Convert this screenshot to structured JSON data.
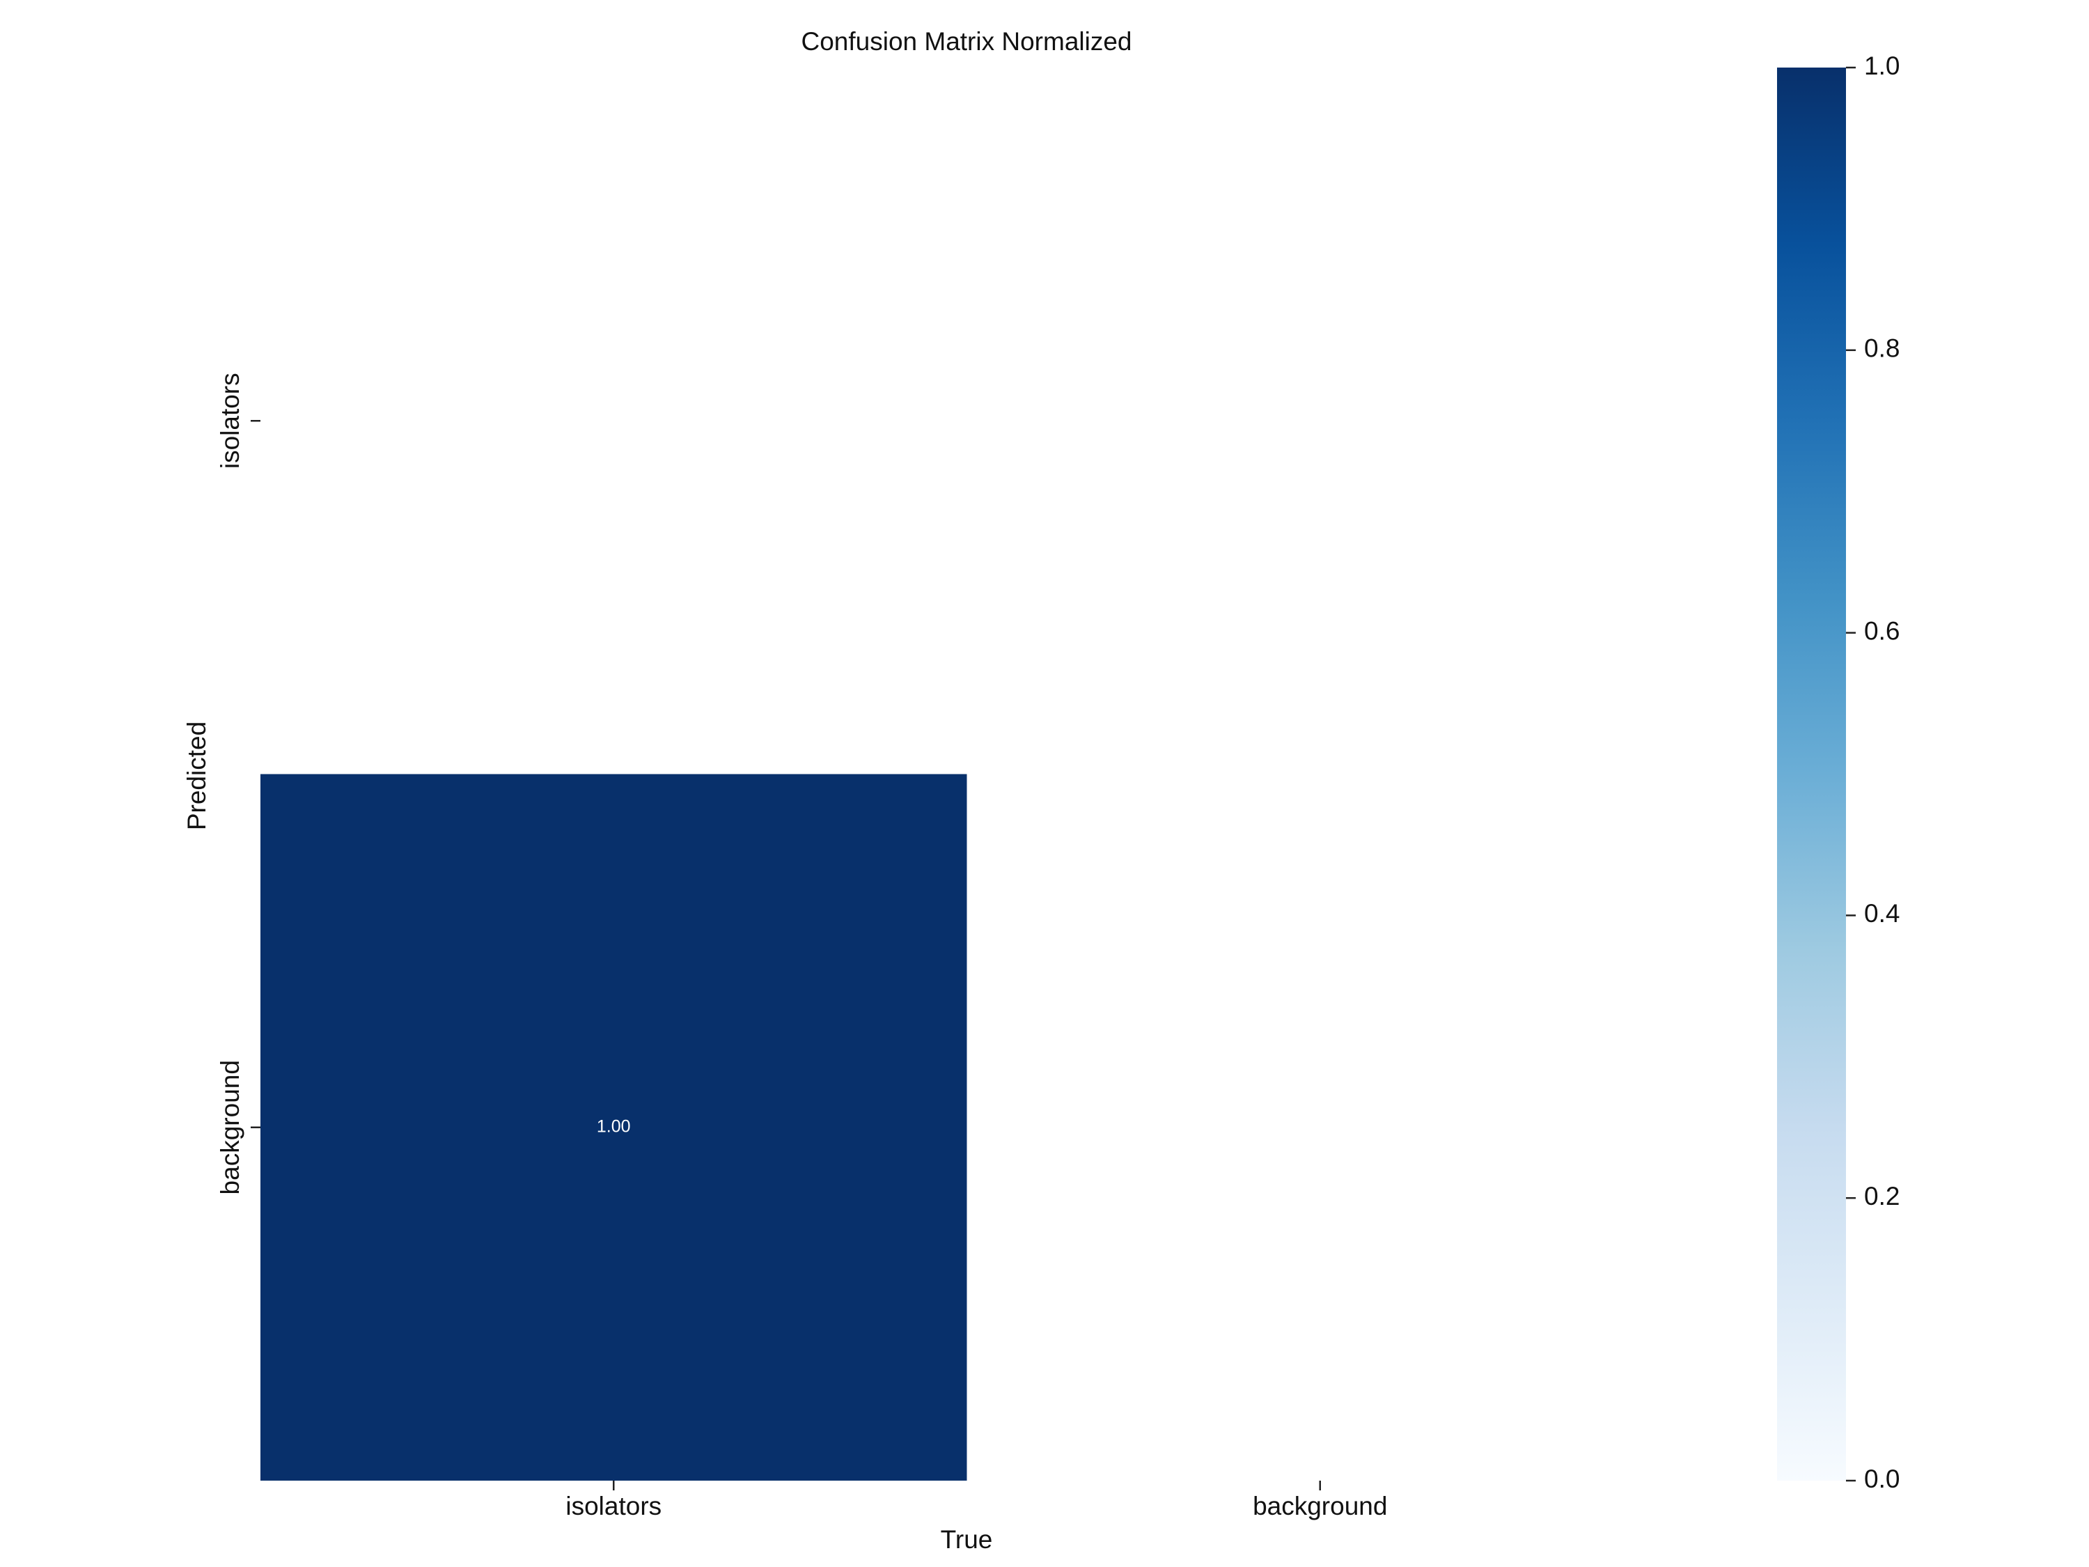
{
  "chart_data": {
    "type": "heatmap",
    "title": "Confusion Matrix Normalized",
    "x_label": "True",
    "y_label": "Predicted",
    "x_categories": [
      "isolators",
      "background"
    ],
    "y_categories": [
      "isolators",
      "background"
    ],
    "values": [
      [
        null,
        null
      ],
      [
        1,
        null
      ]
    ],
    "value_labels": [
      [
        null,
        null
      ],
      [
        "1.00",
        null
      ]
    ],
    "colorscale": [
      "#f7fbff",
      "#deebf7",
      "#c6dbef",
      "#9ecae1",
      "#6baed6",
      "#4292c6",
      "#2171b5",
      "#08519c",
      "#08306b"
    ],
    "zlim": [
      0,
      1
    ],
    "zticks": [
      {
        "value": 0,
        "label": "0.0"
      },
      0.2,
      0.4,
      0.6,
      0.8,
      {
        "value": 1,
        "label": "1.0"
      }
    ]
  }
}
